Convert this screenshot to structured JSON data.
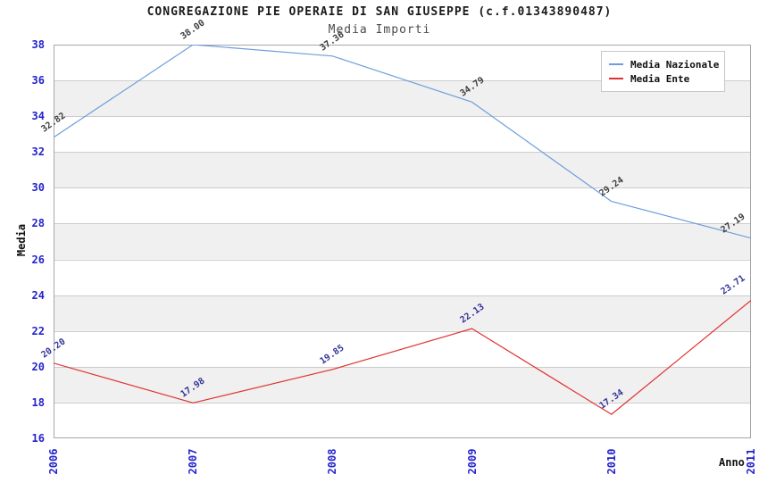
{
  "chart_data": {
    "type": "line",
    "title": "CONGREGAZIONE PIE OPERAIE DI SAN GIUSEPPE (c.f.01343890487)",
    "subtitle": "Media Importi",
    "xlabel": "Anno",
    "ylabel": "Media",
    "categories": [
      "2006",
      "2007",
      "2008",
      "2009",
      "2010",
      "2011"
    ],
    "series": [
      {
        "name": "Media Nazionale",
        "color": "#6d9eda",
        "label_color": "#3b3b3b",
        "values": [
          32.82,
          38.0,
          37.36,
          34.79,
          29.24,
          27.19
        ]
      },
      {
        "name": "Media Ente",
        "color": "#e03232",
        "label_color": "#333399",
        "values": [
          20.2,
          17.98,
          19.85,
          22.13,
          17.34,
          23.71
        ]
      }
    ],
    "ylim": [
      16,
      38
    ],
    "ytick_step": 2,
    "grid": "horizontal-bands",
    "band_colors": [
      "#ffffff",
      "#f0f0f0"
    ],
    "gridline_color": "#cccccc",
    "border_color": "#a6a6a6",
    "tick_label_color": "#2323cc",
    "legend_position": "top-right"
  }
}
